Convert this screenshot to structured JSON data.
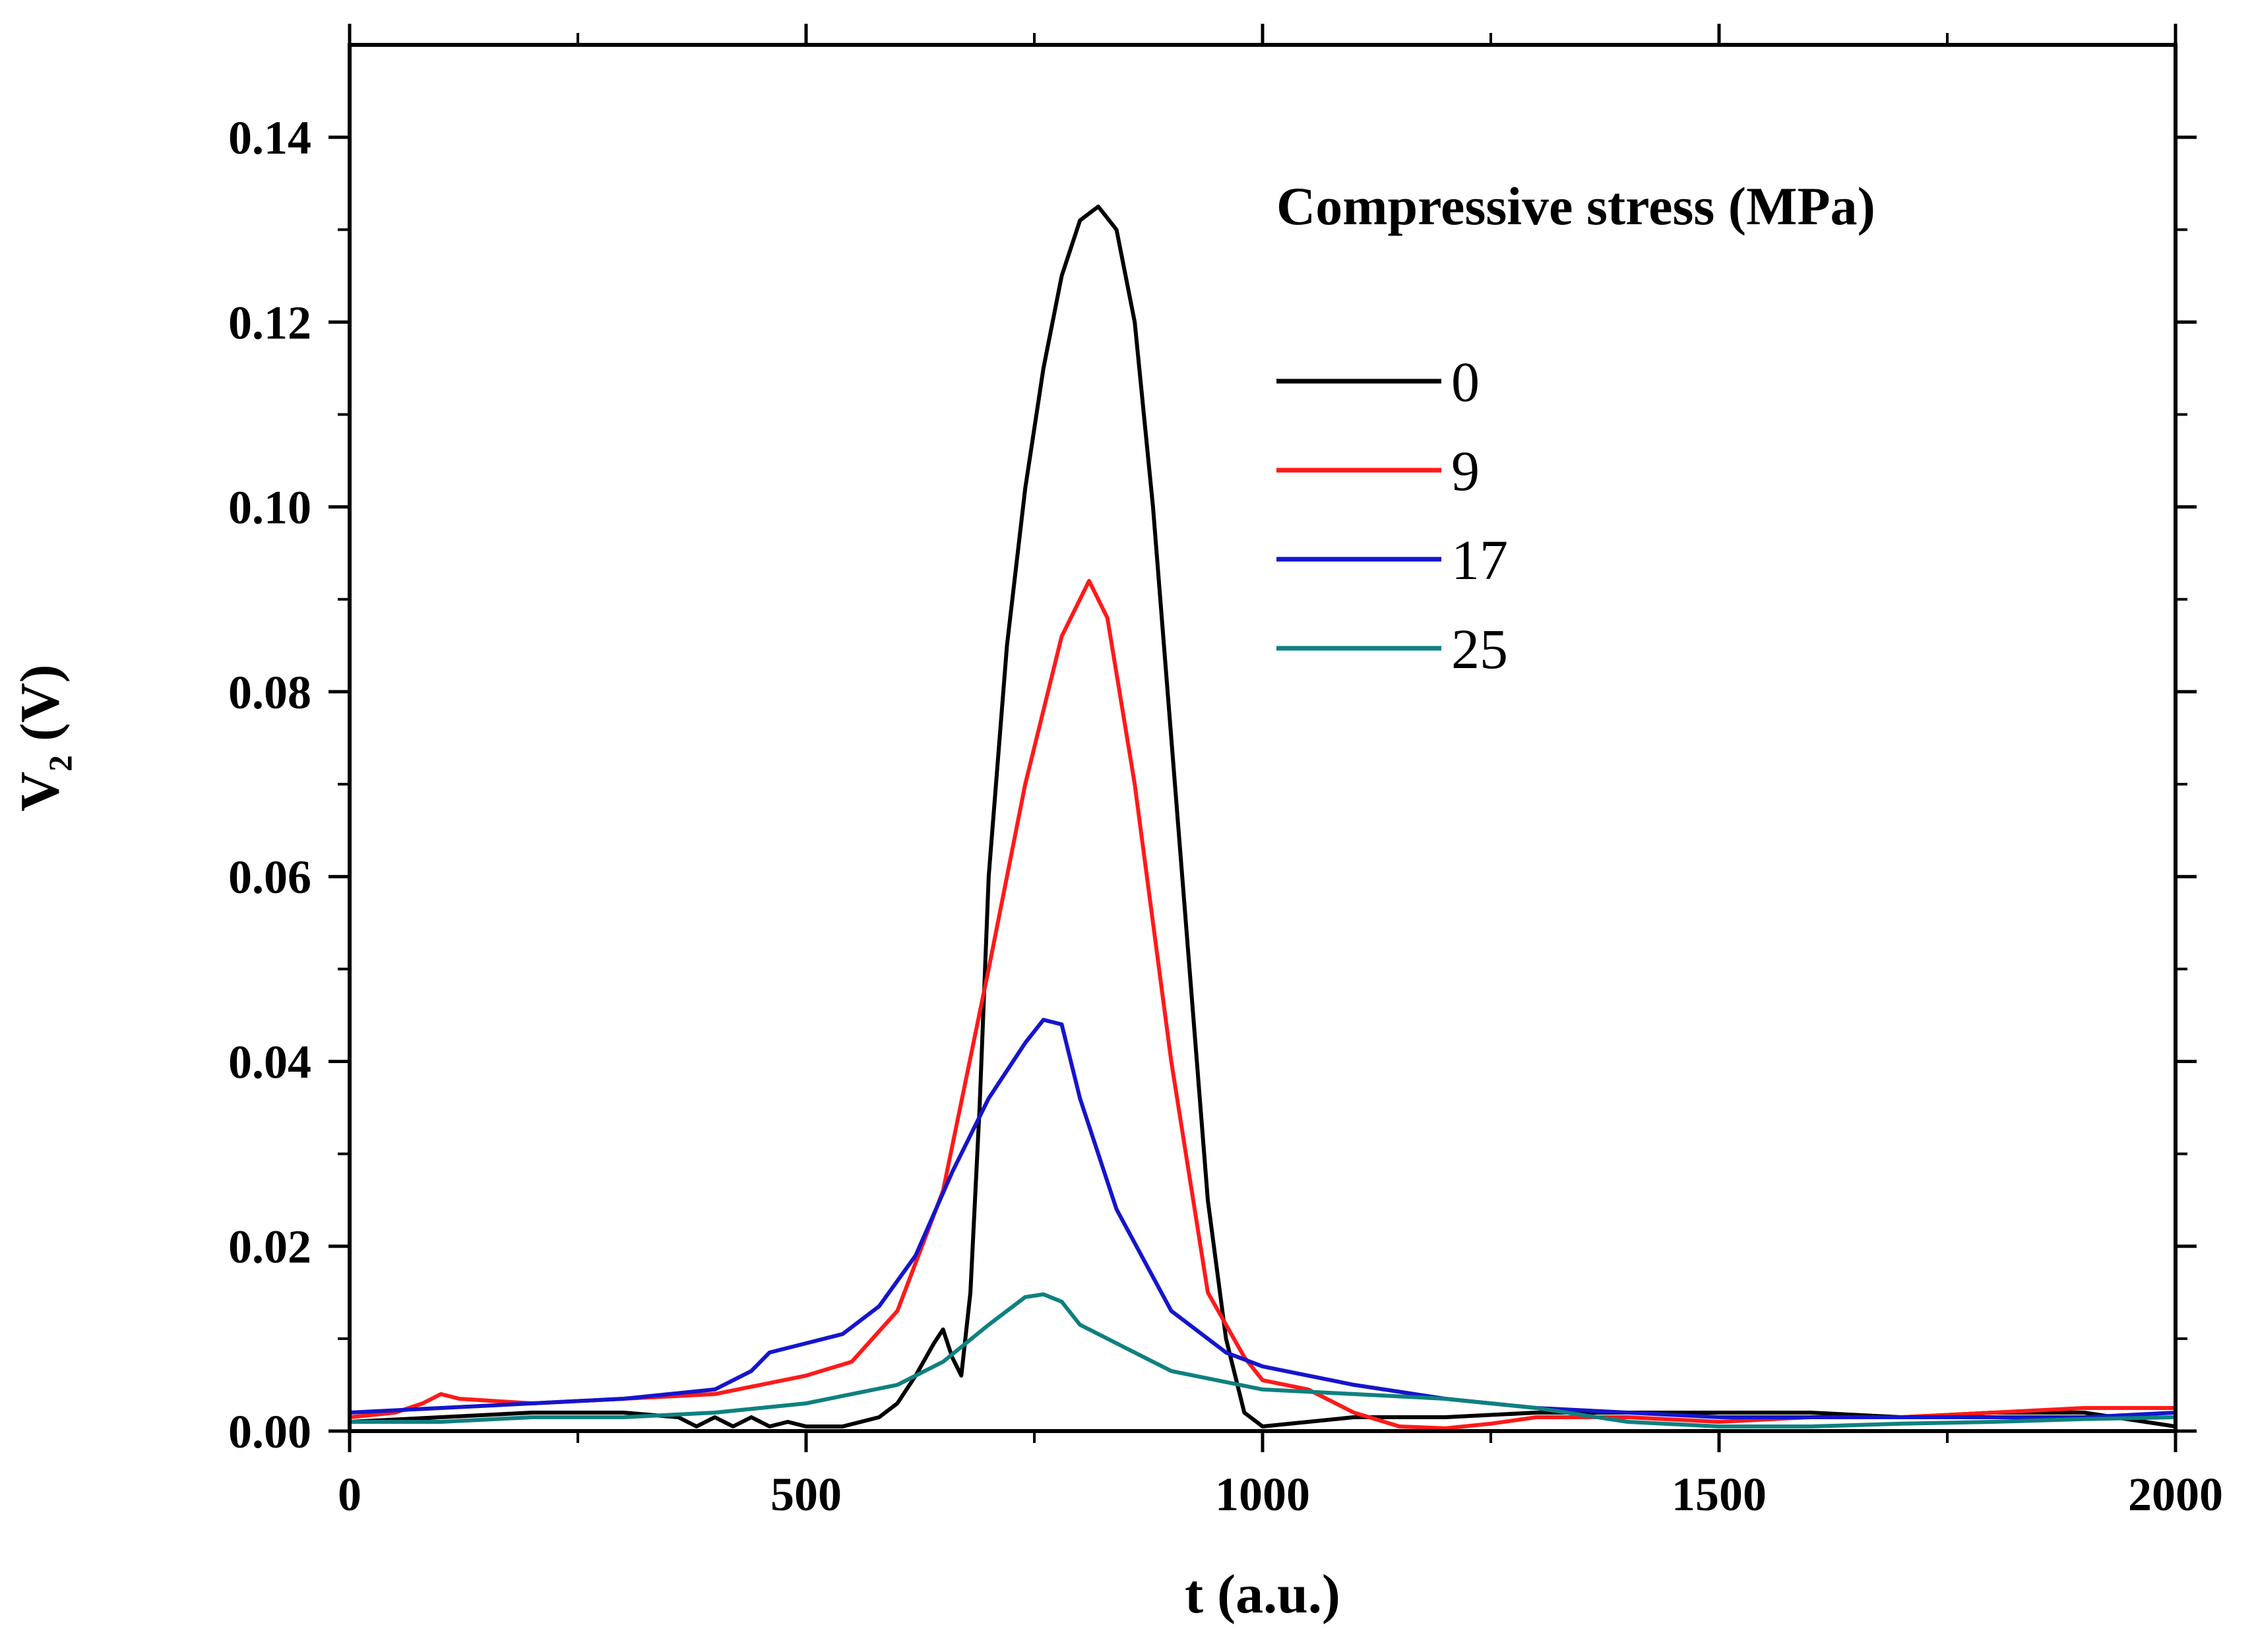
{
  "chart_data": {
    "type": "line",
    "title": "",
    "xlabel": "t (a.u.)",
    "ylabel": "V2 (V)",
    "ylabel_main": "V",
    "ylabel_sub": "2",
    "ylabel_unit": " (V)",
    "xlim": [
      0,
      2000
    ],
    "ylim": [
      0,
      0.15
    ],
    "xticks": [
      0,
      500,
      1000,
      1500,
      2000
    ],
    "xtick_labels": [
      "0",
      "500",
      "1000",
      "1500",
      "2000"
    ],
    "yticks": [
      0,
      0.02,
      0.04,
      0.06,
      0.08,
      0.1,
      0.12,
      0.14
    ],
    "ytick_labels": [
      "0.00",
      "0.02",
      "0.04",
      "0.06",
      "0.08",
      "0.10",
      "0.12",
      "0.14"
    ],
    "grid": false,
    "legend": {
      "title": "Compressive stress (MPa)",
      "position": "top-right"
    },
    "series": [
      {
        "name": "0",
        "color": "#000000",
        "x": [
          0,
          100,
          200,
          300,
          360,
          380,
          400,
          420,
          440,
          460,
          480,
          500,
          540,
          580,
          600,
          620,
          640,
          650,
          660,
          670,
          680,
          690,
          700,
          720,
          740,
          760,
          780,
          800,
          820,
          840,
          860,
          880,
          900,
          920,
          940,
          960,
          980,
          1000,
          1050,
          1100,
          1200,
          1300,
          1400,
          1500,
          1600,
          1700,
          1800,
          1900,
          2000
        ],
        "y": [
          0.001,
          0.0015,
          0.002,
          0.002,
          0.0015,
          0.0005,
          0.0015,
          0.0005,
          0.0015,
          0.0005,
          0.001,
          0.0005,
          0.0005,
          0.0015,
          0.003,
          0.006,
          0.0095,
          0.011,
          0.008,
          0.006,
          0.015,
          0.035,
          0.06,
          0.085,
          0.102,
          0.115,
          0.125,
          0.131,
          0.1325,
          0.13,
          0.12,
          0.1,
          0.075,
          0.05,
          0.025,
          0.01,
          0.002,
          0.0005,
          0.001,
          0.0015,
          0.0015,
          0.002,
          0.002,
          0.002,
          0.002,
          0.0015,
          0.002,
          0.002,
          0.0005
        ]
      },
      {
        "name": "9",
        "color": "#ff1a1a",
        "x": [
          0,
          50,
          80,
          100,
          120,
          200,
          300,
          400,
          500,
          550,
          600,
          650,
          700,
          740,
          780,
          810,
          830,
          860,
          900,
          940,
          980,
          1000,
          1050,
          1100,
          1150,
          1200,
          1250,
          1300,
          1400,
          1500,
          1600,
          1700,
          1800,
          1900,
          2000
        ],
        "y": [
          0.0015,
          0.002,
          0.003,
          0.004,
          0.0035,
          0.003,
          0.0035,
          0.004,
          0.006,
          0.0075,
          0.013,
          0.026,
          0.05,
          0.07,
          0.086,
          0.092,
          0.088,
          0.07,
          0.04,
          0.015,
          0.008,
          0.0055,
          0.0045,
          0.002,
          0.0005,
          0.0003,
          0.0008,
          0.0015,
          0.0015,
          0.001,
          0.0015,
          0.0015,
          0.002,
          0.0025,
          0.0025
        ]
      },
      {
        "name": "17",
        "color": "#1515cc",
        "x": [
          0,
          100,
          200,
          300,
          400,
          440,
          460,
          500,
          540,
          580,
          620,
          660,
          700,
          740,
          760,
          780,
          800,
          840,
          900,
          960,
          1000,
          1050,
          1100,
          1200,
          1300,
          1400,
          1500,
          1600,
          1700,
          1800,
          1900,
          2000
        ],
        "y": [
          0.002,
          0.0025,
          0.003,
          0.0035,
          0.0045,
          0.0065,
          0.0085,
          0.0095,
          0.0105,
          0.0135,
          0.019,
          0.028,
          0.036,
          0.042,
          0.0445,
          0.044,
          0.036,
          0.024,
          0.013,
          0.0085,
          0.007,
          0.006,
          0.005,
          0.0035,
          0.0025,
          0.002,
          0.0015,
          0.0015,
          0.0015,
          0.0015,
          0.0015,
          0.002
        ]
      },
      {
        "name": "25",
        "color": "#0f8080",
        "x": [
          0,
          100,
          200,
          300,
          400,
          500,
          550,
          600,
          650,
          700,
          740,
          760,
          780,
          800,
          850,
          900,
          950,
          1000,
          1100,
          1200,
          1300,
          1400,
          1500,
          1600,
          1700,
          1800,
          1900,
          2000
        ],
        "y": [
          0.001,
          0.001,
          0.0015,
          0.0015,
          0.002,
          0.003,
          0.004,
          0.005,
          0.0075,
          0.0115,
          0.0145,
          0.0148,
          0.014,
          0.0115,
          0.009,
          0.0065,
          0.0055,
          0.0045,
          0.004,
          0.0035,
          0.0025,
          0.001,
          0.0005,
          0.0005,
          0.0008,
          0.001,
          0.0013,
          0.0015
        ]
      }
    ]
  }
}
